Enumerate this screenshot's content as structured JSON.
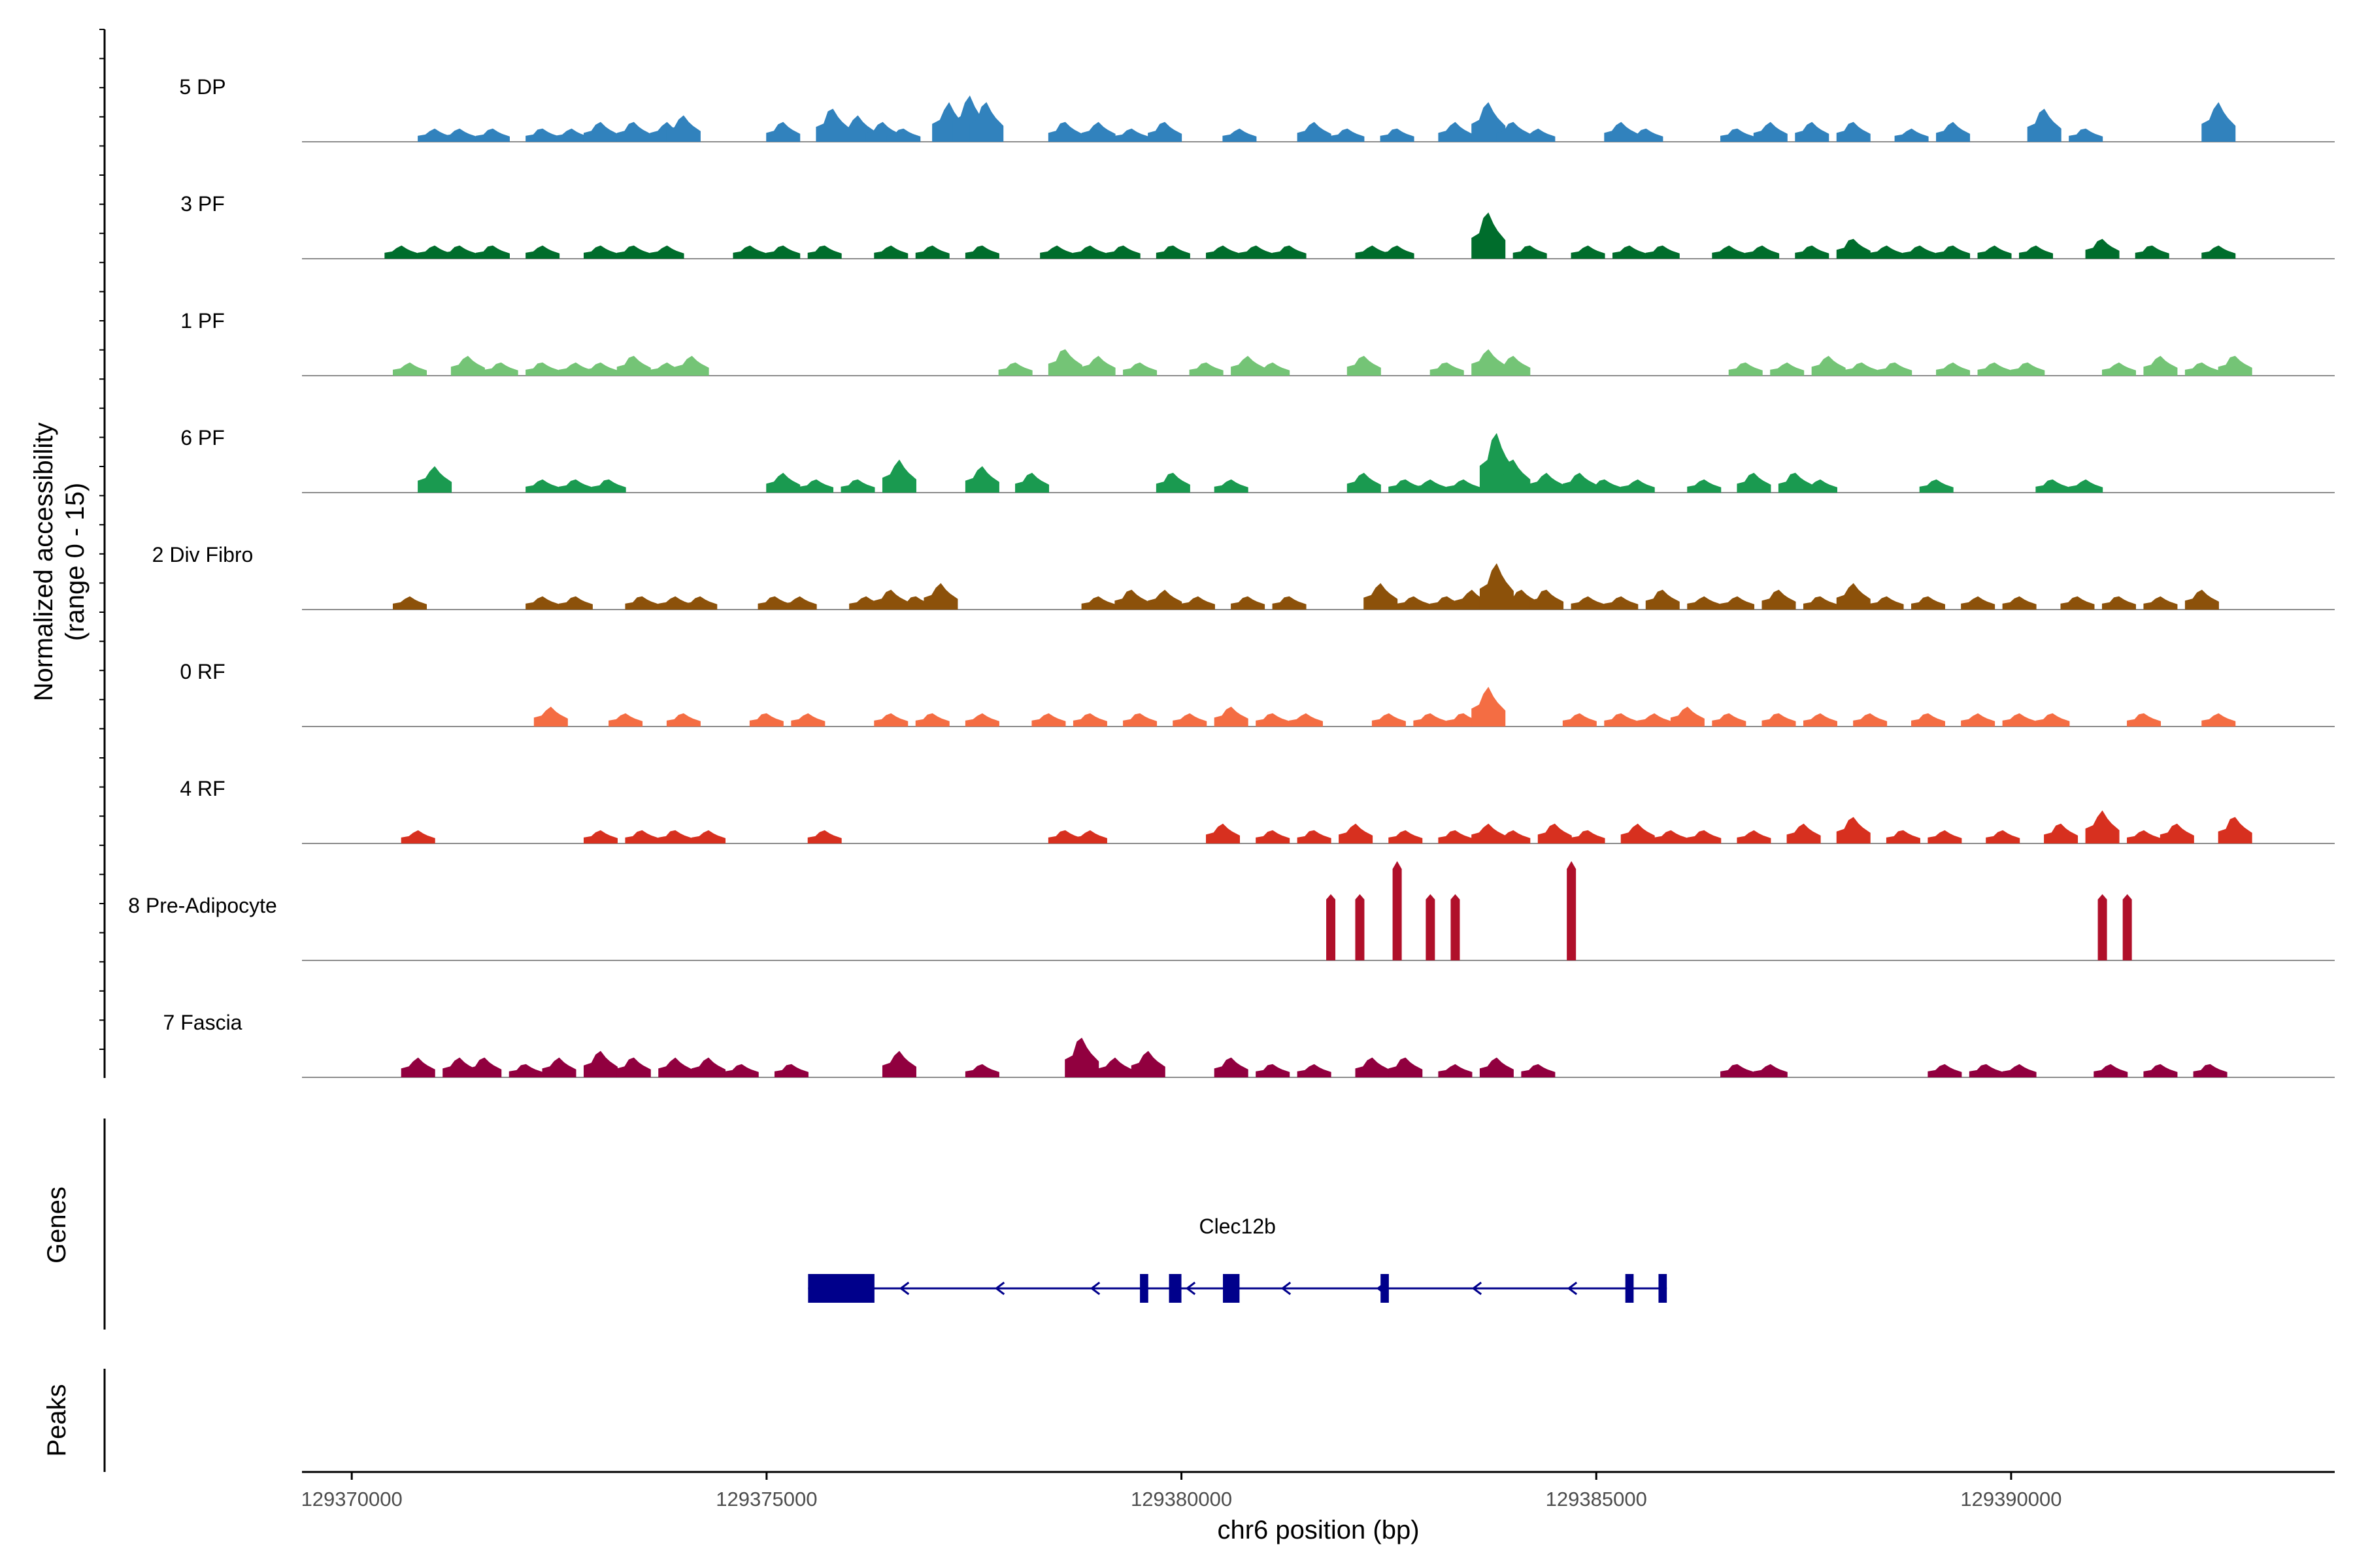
{
  "chart_data": {
    "type": "area",
    "title": "",
    "ylabel_line1": "Normalized accessibility",
    "ylabel_line2": "(range 0 - 15)",
    "xlabel": "chr6 position (bp)",
    "ylim": [
      0,
      15
    ],
    "xlim": [
      129369400,
      129393900
    ],
    "x_ticks": [
      129370000,
      129375000,
      129380000,
      129385000,
      129390000
    ],
    "x_tick_labels": [
      "129370000",
      "129375000",
      "129380000",
      "129385000",
      "129390000"
    ],
    "tracks": [
      {
        "name": "5 DP",
        "color": "#3182bd",
        "peaks": [
          [
            129371000,
            2
          ],
          [
            129371300,
            2
          ],
          [
            129371700,
            2
          ],
          [
            129372300,
            2
          ],
          [
            129372650,
            2
          ],
          [
            129373000,
            3
          ],
          [
            129373400,
            3
          ],
          [
            129373800,
            3
          ],
          [
            129374000,
            4
          ],
          [
            129375200,
            3
          ],
          [
            129375800,
            5
          ],
          [
            129376100,
            4
          ],
          [
            129376400,
            3
          ],
          [
            129376650,
            2
          ],
          [
            129377200,
            6
          ],
          [
            129377450,
            7
          ],
          [
            129377650,
            6
          ],
          [
            129378600,
            3
          ],
          [
            129379000,
            3
          ],
          [
            129379400,
            2
          ],
          [
            129379800,
            3
          ],
          [
            129380700,
            2
          ],
          [
            129381600,
            3
          ],
          [
            129382000,
            2
          ],
          [
            129382600,
            2
          ],
          [
            129383300,
            3
          ],
          [
            129383700,
            6
          ],
          [
            129384000,
            3
          ],
          [
            129384300,
            2
          ],
          [
            129385300,
            3
          ],
          [
            129385600,
            2
          ],
          [
            129386700,
            2
          ],
          [
            129387100,
            3
          ],
          [
            129387600,
            3
          ],
          [
            129388100,
            3
          ],
          [
            129388800,
            2
          ],
          [
            129389300,
            3
          ],
          [
            129390400,
            5
          ],
          [
            129390900,
            2
          ],
          [
            129392500,
            6
          ]
        ]
      },
      {
        "name": "3 PF",
        "color": "#006d2c",
        "peaks": [
          [
            129370600,
            2
          ],
          [
            129371000,
            2
          ],
          [
            129371300,
            2
          ],
          [
            129371700,
            2
          ],
          [
            129372300,
            2
          ],
          [
            129373000,
            2
          ],
          [
            129373400,
            2
          ],
          [
            129373800,
            2
          ],
          [
            129374800,
            2
          ],
          [
            129375200,
            2
          ],
          [
            129375700,
            2
          ],
          [
            129376500,
            2
          ],
          [
            129377000,
            2
          ],
          [
            129377600,
            2
          ],
          [
            129378500,
            2
          ],
          [
            129378900,
            2
          ],
          [
            129379300,
            2
          ],
          [
            129379900,
            2
          ],
          [
            129380500,
            2
          ],
          [
            129380900,
            2
          ],
          [
            129381300,
            2
          ],
          [
            129382300,
            2
          ],
          [
            129382600,
            2
          ],
          [
            129383700,
            7
          ],
          [
            129384200,
            2
          ],
          [
            129384900,
            2
          ],
          [
            129385400,
            2
          ],
          [
            129385800,
            2
          ],
          [
            129386600,
            2
          ],
          [
            129387000,
            2
          ],
          [
            129387600,
            2
          ],
          [
            129388100,
            3
          ],
          [
            129388500,
            2
          ],
          [
            129388900,
            2
          ],
          [
            129389300,
            2
          ],
          [
            129389800,
            2
          ],
          [
            129390300,
            2
          ],
          [
            129391100,
            3
          ],
          [
            129391700,
            2
          ],
          [
            129392500,
            2
          ]
        ]
      },
      {
        "name": "1 PF",
        "color": "#74c476",
        "peaks": [
          [
            129370700,
            2
          ],
          [
            129371400,
            3
          ],
          [
            129371800,
            2
          ],
          [
            129372300,
            2
          ],
          [
            129372700,
            2
          ],
          [
            129373000,
            2
          ],
          [
            129373400,
            3
          ],
          [
            129373800,
            2
          ],
          [
            129374100,
            3
          ],
          [
            129378000,
            2
          ],
          [
            129378600,
            4
          ],
          [
            129379000,
            3
          ],
          [
            129379500,
            2
          ],
          [
            129380300,
            2
          ],
          [
            129380800,
            3
          ],
          [
            129381100,
            2
          ],
          [
            129382200,
            3
          ],
          [
            129383200,
            2
          ],
          [
            129383700,
            4
          ],
          [
            129384000,
            3
          ],
          [
            129386800,
            2
          ],
          [
            129387300,
            2
          ],
          [
            129387800,
            3
          ],
          [
            129388200,
            2
          ],
          [
            129388600,
            2
          ],
          [
            129389300,
            2
          ],
          [
            129389800,
            2
          ],
          [
            129390200,
            2
          ],
          [
            129391300,
            2
          ],
          [
            129391800,
            3
          ],
          [
            129392300,
            2
          ],
          [
            129392700,
            3
          ]
        ]
      },
      {
        "name": "6 PF",
        "color": "#1a9a50",
        "peaks": [
          [
            129371000,
            4
          ],
          [
            129372300,
            2
          ],
          [
            129372700,
            2
          ],
          [
            129373100,
            2
          ],
          [
            129375200,
            3
          ],
          [
            129375600,
            2
          ],
          [
            129376100,
            2
          ],
          [
            129376600,
            5
          ],
          [
            129377600,
            4
          ],
          [
            129378200,
            3
          ],
          [
            129379900,
            3
          ],
          [
            129380600,
            2
          ],
          [
            129382200,
            3
          ],
          [
            129382700,
            2
          ],
          [
            129383000,
            2
          ],
          [
            129383400,
            2
          ],
          [
            129383800,
            9
          ],
          [
            129384000,
            5
          ],
          [
            129384400,
            3
          ],
          [
            129384800,
            3
          ],
          [
            129385100,
            2
          ],
          [
            129385500,
            2
          ],
          [
            129386300,
            2
          ],
          [
            129386900,
            3
          ],
          [
            129387400,
            3
          ],
          [
            129387700,
            2
          ],
          [
            129389100,
            2
          ],
          [
            129390500,
            2
          ],
          [
            129390900,
            2
          ]
        ]
      },
      {
        "name": "2 Div Fibro",
        "color": "#8c510a",
        "peaks": [
          [
            129370700,
            2
          ],
          [
            129372300,
            2
          ],
          [
            129372700,
            2
          ],
          [
            129373500,
            2
          ],
          [
            129373900,
            2
          ],
          [
            129374200,
            2
          ],
          [
            129375100,
            2
          ],
          [
            129375400,
            2
          ],
          [
            129376200,
            2
          ],
          [
            129376500,
            3
          ],
          [
            129376800,
            2
          ],
          [
            129377100,
            4
          ],
          [
            129379000,
            2
          ],
          [
            129379400,
            3
          ],
          [
            129379800,
            3
          ],
          [
            129380200,
            2
          ],
          [
            129380800,
            2
          ],
          [
            129381300,
            2
          ],
          [
            129382400,
            4
          ],
          [
            129382800,
            2
          ],
          [
            129383200,
            2
          ],
          [
            129383500,
            3
          ],
          [
            129383800,
            7
          ],
          [
            129384100,
            3
          ],
          [
            129384400,
            3
          ],
          [
            129384900,
            2
          ],
          [
            129385300,
            2
          ],
          [
            129385800,
            3
          ],
          [
            129386300,
            2
          ],
          [
            129386700,
            2
          ],
          [
            129387200,
            3
          ],
          [
            129387700,
            2
          ],
          [
            129388100,
            4
          ],
          [
            129388500,
            2
          ],
          [
            129389000,
            2
          ],
          [
            129389600,
            2
          ],
          [
            129390100,
            2
          ],
          [
            129390800,
            2
          ],
          [
            129391300,
            2
          ],
          [
            129391800,
            2
          ],
          [
            129392300,
            3
          ]
        ]
      },
      {
        "name": "0 RF",
        "color": "#f46d43",
        "peaks": [
          [
            129372400,
            3
          ],
          [
            129373300,
            2
          ],
          [
            129374000,
            2
          ],
          [
            129375000,
            2
          ],
          [
            129375500,
            2
          ],
          [
            129376500,
            2
          ],
          [
            129377000,
            2
          ],
          [
            129377600,
            2
          ],
          [
            129378400,
            2
          ],
          [
            129378900,
            2
          ],
          [
            129379500,
            2
          ],
          [
            129380100,
            2
          ],
          [
            129380600,
            3
          ],
          [
            129381100,
            2
          ],
          [
            129381500,
            2
          ],
          [
            129382500,
            2
          ],
          [
            129383000,
            2
          ],
          [
            129383400,
            2
          ],
          [
            129383700,
            6
          ],
          [
            129384800,
            2
          ],
          [
            129385300,
            2
          ],
          [
            129385700,
            2
          ],
          [
            129386100,
            3
          ],
          [
            129386600,
            2
          ],
          [
            129387200,
            2
          ],
          [
            129387700,
            2
          ],
          [
            129388300,
            2
          ],
          [
            129389000,
            2
          ],
          [
            129389600,
            2
          ],
          [
            129390100,
            2
          ],
          [
            129390500,
            2
          ],
          [
            129391600,
            2
          ],
          [
            129392500,
            2
          ]
        ]
      },
      {
        "name": "4 RF",
        "color": "#d7301f",
        "peaks": [
          [
            129370800,
            2
          ],
          [
            129373000,
            2
          ],
          [
            129373500,
            2
          ],
          [
            129373900,
            2
          ],
          [
            129374300,
            2
          ],
          [
            129375700,
            2
          ],
          [
            129378600,
            2
          ],
          [
            129378900,
            2
          ],
          [
            129380500,
            3
          ],
          [
            129381100,
            2
          ],
          [
            129381600,
            2
          ],
          [
            129382100,
            3
          ],
          [
            129382700,
            2
          ],
          [
            129383300,
            2
          ],
          [
            129383700,
            3
          ],
          [
            129384000,
            2
          ],
          [
            129384500,
            3
          ],
          [
            129384900,
            2
          ],
          [
            129385500,
            3
          ],
          [
            129385900,
            2
          ],
          [
            129386300,
            2
          ],
          [
            129386900,
            2
          ],
          [
            129387500,
            3
          ],
          [
            129388100,
            4
          ],
          [
            129388700,
            2
          ],
          [
            129389200,
            2
          ],
          [
            129389900,
            2
          ],
          [
            129390600,
            3
          ],
          [
            129391100,
            5
          ],
          [
            129391600,
            2
          ],
          [
            129392000,
            3
          ],
          [
            129392700,
            4
          ]
        ]
      },
      {
        "name": "8 Pre-Adipocyte",
        "color": "#b0102a",
        "peaks": [
          [
            129381800,
            10
          ],
          [
            129382150,
            10
          ],
          [
            129382600,
            15
          ],
          [
            129383000,
            10
          ],
          [
            129383300,
            10
          ],
          [
            129384700,
            15
          ],
          [
            129391100,
            10
          ],
          [
            129391400,
            10
          ]
        ]
      },
      {
        "name": "7 Fascia",
        "color": "#91003f",
        "peaks": [
          [
            129370800,
            3
          ],
          [
            129371300,
            3
          ],
          [
            129371600,
            3
          ],
          [
            129372100,
            2
          ],
          [
            129372500,
            3
          ],
          [
            129373000,
            4
          ],
          [
            129373400,
            3
          ],
          [
            129373900,
            3
          ],
          [
            129374300,
            3
          ],
          [
            129374700,
            2
          ],
          [
            129375300,
            2
          ],
          [
            129376600,
            4
          ],
          [
            129377600,
            2
          ],
          [
            129378800,
            6
          ],
          [
            129379200,
            3
          ],
          [
            129379600,
            4
          ],
          [
            129380600,
            3
          ],
          [
            129381100,
            2
          ],
          [
            129381600,
            2
          ],
          [
            129382300,
            3
          ],
          [
            129382700,
            3
          ],
          [
            129383300,
            2
          ],
          [
            129383800,
            3
          ],
          [
            129384300,
            2
          ],
          [
            129386700,
            2
          ],
          [
            129387100,
            2
          ],
          [
            129389200,
            2
          ],
          [
            129389700,
            2
          ],
          [
            129390100,
            2
          ],
          [
            129391200,
            2
          ],
          [
            129391800,
            2
          ],
          [
            129392400,
            2
          ]
        ]
      }
    ],
    "genes_label": "Genes",
    "peaks_label": "Peaks",
    "gene": {
      "name": "Clec12b",
      "color": "#00008b",
      "strand": "-",
      "start": 129375500,
      "end": 129385850,
      "exons": [
        [
          129375500,
          129376300
        ],
        [
          129379500,
          129379600
        ],
        [
          129379850,
          129380000
        ],
        [
          129380500,
          129380700
        ],
        [
          129382400,
          129382500
        ],
        [
          129385350,
          129385450
        ],
        [
          129385750,
          129385850
        ]
      ]
    }
  }
}
